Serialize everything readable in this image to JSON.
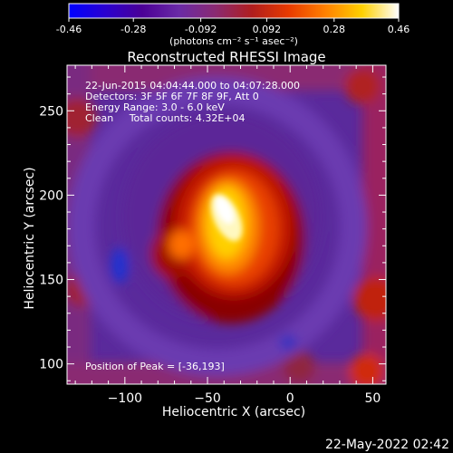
{
  "colorbar": {
    "tick_labels": [
      "-0.46",
      "-0.28",
      "-0.092",
      "0.092",
      "0.28",
      "0.46"
    ],
    "tick_values": [
      -0.46,
      -0.28,
      -0.092,
      0.092,
      0.28,
      0.46
    ],
    "range": [
      -0.46,
      0.46
    ],
    "unit_label": "(photons cm⁻² s⁻¹ asec⁻²)",
    "gradient_colors": [
      "#0000ff",
      "#2a00d0",
      "#4b0096",
      "#6a2aa6",
      "#8a2a72",
      "#b01e1e",
      "#e83a00",
      "#ff8000",
      "#ffd000",
      "#ffffff"
    ]
  },
  "chart_data": {
    "type": "heatmap",
    "title": "Reconstructed RHESSI Image",
    "xlabel": "Heliocentric X (arcsec)",
    "ylabel": "Heliocentric Y (arcsec)",
    "xlim": [
      -135,
      58
    ],
    "ylim": [
      88,
      277
    ],
    "x_ticks": [
      -100,
      -50,
      0,
      50
    ],
    "x_tick_labels": [
      "−100",
      "−50",
      "0",
      "50"
    ],
    "y_ticks": [
      100,
      150,
      200,
      250
    ],
    "y_tick_labels": [
      "100",
      "150",
      "200",
      "250"
    ],
    "info_lines": [
      "22-Jun-2015 04:04:44.000 to 04:07:28.000",
      "Detectors: 3F 5F 6F 7F 8F 9F, Att 0",
      "Energy Range: 3.0 - 6.0 keV",
      "Clean     Total counts: 4.32E+04"
    ],
    "peak_label": "Position of Peak = [-36,193]",
    "peak": [
      -36,
      193
    ]
  },
  "footer_date": "22-May-2022 02:42"
}
